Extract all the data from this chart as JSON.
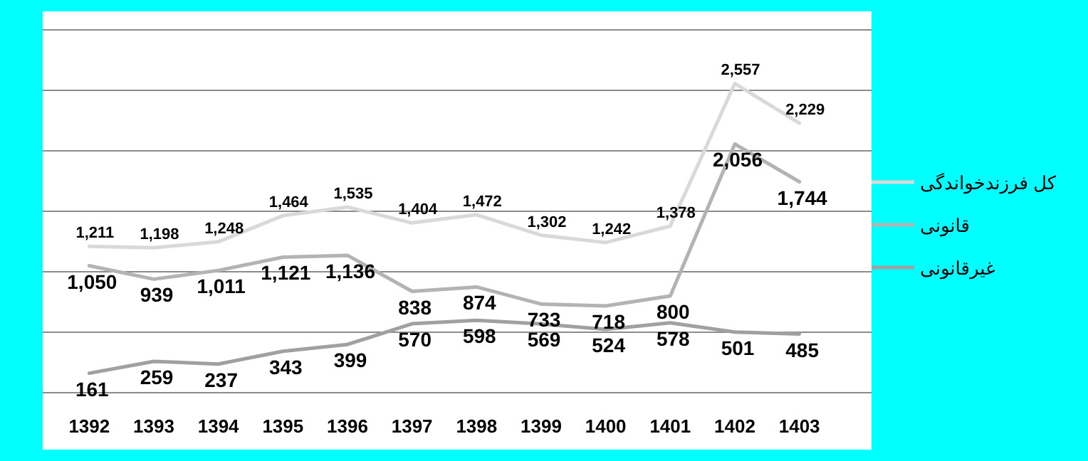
{
  "chart_data": {
    "type": "line",
    "categories": [
      "1392",
      "1393",
      "1394",
      "1395",
      "1396",
      "1397",
      "1398",
      "1399",
      "1400",
      "1401",
      "1402",
      "1403"
    ],
    "series": [
      {
        "name": "کل فرزندخواندگی",
        "color": "#d9d9d9",
        "values": [
          1211,
          1198,
          1248,
          1464,
          1535,
          1404,
          1472,
          1302,
          1242,
          1378,
          2557,
          2229
        ],
        "value_labels": [
          "1,211",
          "1,198",
          "1,248",
          "1,464",
          "1,535",
          "1,404",
          "1,472",
          "1,302",
          "1,242",
          "1,378",
          "2,557",
          "2,229"
        ]
      },
      {
        "name": "قانونی",
        "color": "#b3b3b3",
        "values": [
          1050,
          939,
          1011,
          1121,
          1136,
          838,
          874,
          733,
          718,
          800,
          2056,
          1744
        ],
        "value_labels": [
          "1,050",
          "939",
          "1,011",
          "1,121",
          "1,136",
          "838",
          "874",
          "733",
          "718",
          "800",
          "2,056",
          "1,744"
        ]
      },
      {
        "name": "غیرقانونی",
        "color": "#a0a0a0",
        "values": [
          161,
          259,
          237,
          343,
          399,
          570,
          598,
          569,
          524,
          578,
          501,
          485
        ],
        "value_labels": [
          "161",
          "259",
          "237",
          "343",
          "399",
          "570",
          "598",
          "569",
          "524",
          "578",
          "501",
          "485"
        ]
      }
    ],
    "ylim": [
      0,
      3000
    ],
    "yticks": [
      {
        "value": 0,
        "label": null
      },
      {
        "value": 500,
        "label": null
      },
      {
        "value": 1000,
        "label": null
      },
      {
        "value": 1500,
        "label": null
      },
      {
        "value": 2000,
        "label": null
      },
      {
        "value": 2500,
        "label": null
      },
      {
        "value": 3000,
        "label": null
      }
    ],
    "grid": "y",
    "tick_labels": "x",
    "legend": "right",
    "marker": "none",
    "line_style": "solid"
  }
}
